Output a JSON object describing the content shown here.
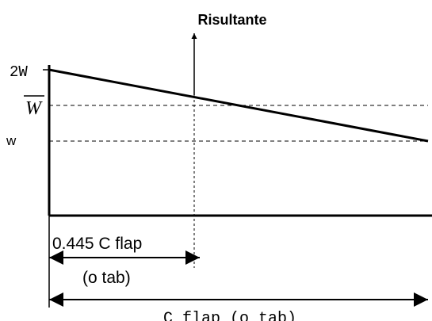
{
  "diagram": {
    "title": "Risultante",
    "labels": {
      "top": "2W",
      "mean": "W",
      "bottom": "w"
    },
    "dimensions": {
      "resultant_line1": "0.445 C flap",
      "resultant_line2": "(o tab)",
      "chord": "C flap (o tab)"
    }
  }
}
